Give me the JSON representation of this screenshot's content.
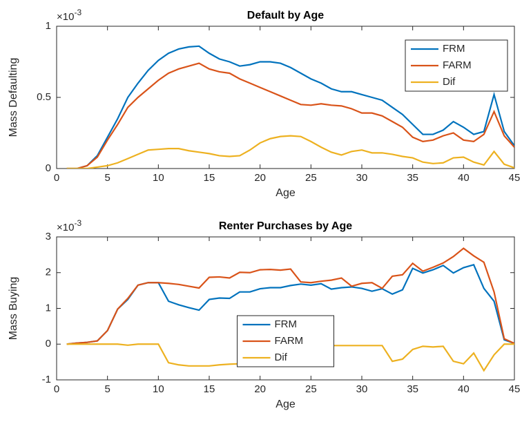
{
  "chart_data": [
    {
      "type": "line",
      "title": "Default by Age",
      "xlabel": "Age",
      "ylabel": "Mass Defaulting",
      "y_exponent": {
        "base": "×10",
        "power": "-3"
      },
      "x": [
        1,
        2,
        3,
        4,
        5,
        6,
        7,
        8,
        9,
        10,
        11,
        12,
        13,
        14,
        15,
        16,
        17,
        18,
        19,
        20,
        21,
        22,
        23,
        24,
        25,
        26,
        27,
        28,
        29,
        30,
        31,
        32,
        33,
        34,
        35,
        36,
        37,
        38,
        39,
        40,
        41,
        42,
        43,
        44,
        45
      ],
      "series": [
        {
          "name": "FRM",
          "color": "#0072BD",
          "values": [
            0,
            0,
            0.02,
            0.09,
            0.22,
            0.35,
            0.5,
            0.6,
            0.69,
            0.76,
            0.81,
            0.84,
            0.855,
            0.86,
            0.81,
            0.77,
            0.75,
            0.72,
            0.73,
            0.75,
            0.75,
            0.74,
            0.71,
            0.67,
            0.63,
            0.6,
            0.56,
            0.54,
            0.54,
            0.52,
            0.5,
            0.48,
            0.43,
            0.38,
            0.31,
            0.24,
            0.24,
            0.27,
            0.33,
            0.29,
            0.24,
            0.26,
            0.52,
            0.26,
            0.16
          ]
        },
        {
          "name": "FARM",
          "color": "#D95319",
          "values": [
            0,
            0,
            0.02,
            0.08,
            0.2,
            0.31,
            0.43,
            0.5,
            0.56,
            0.62,
            0.67,
            0.7,
            0.72,
            0.74,
            0.7,
            0.68,
            0.67,
            0.63,
            0.6,
            0.57,
            0.54,
            0.51,
            0.48,
            0.45,
            0.445,
            0.455,
            0.445,
            0.44,
            0.42,
            0.39,
            0.39,
            0.37,
            0.33,
            0.29,
            0.22,
            0.19,
            0.2,
            0.23,
            0.25,
            0.2,
            0.19,
            0.24,
            0.4,
            0.23,
            0.15
          ]
        },
        {
          "name": "Dif",
          "color": "#EDB120",
          "values": [
            0,
            0,
            0,
            0.01,
            0.02,
            0.04,
            0.07,
            0.1,
            0.13,
            0.135,
            0.14,
            0.14,
            0.125,
            0.115,
            0.105,
            0.09,
            0.085,
            0.09,
            0.13,
            0.18,
            0.21,
            0.225,
            0.23,
            0.225,
            0.19,
            0.15,
            0.115,
            0.095,
            0.12,
            0.13,
            0.11,
            0.11,
            0.1,
            0.085,
            0.075,
            0.045,
            0.035,
            0.04,
            0.075,
            0.08,
            0.045,
            0.025,
            0.12,
            0.03,
            0.005
          ]
        }
      ],
      "xlim": [
        0,
        45
      ],
      "xticks": [
        0,
        5,
        10,
        15,
        20,
        25,
        30,
        35,
        40,
        45
      ],
      "ylim": [
        0,
        1
      ],
      "yticks": [
        0,
        0.5,
        1
      ],
      "legend": "northeast"
    },
    {
      "type": "line",
      "title": "Renter Purchases by Age",
      "xlabel": "Age",
      "ylabel": "Mass Buying",
      "y_exponent": {
        "base": "×10",
        "power": "-3"
      },
      "x": [
        1,
        2,
        3,
        4,
        5,
        6,
        7,
        8,
        9,
        10,
        11,
        12,
        13,
        14,
        15,
        16,
        17,
        18,
        19,
        20,
        21,
        22,
        23,
        24,
        25,
        26,
        27,
        28,
        29,
        30,
        31,
        32,
        33,
        34,
        35,
        36,
        37,
        38,
        39,
        40,
        41,
        42,
        43,
        44,
        45
      ],
      "series": [
        {
          "name": "FRM",
          "color": "#0072BD",
          "values": [
            0,
            0.03,
            0.05,
            0.09,
            0.38,
            0.98,
            1.25,
            1.65,
            1.72,
            1.72,
            1.2,
            1.1,
            1.02,
            0.95,
            1.25,
            1.29,
            1.28,
            1.46,
            1.46,
            1.55,
            1.58,
            1.58,
            1.64,
            1.68,
            1.65,
            1.69,
            1.54,
            1.58,
            1.6,
            1.56,
            1.48,
            1.55,
            1.4,
            1.52,
            2.12,
            1.99,
            2.08,
            2.2,
            1.99,
            2.14,
            2.22,
            1.56,
            1.2,
            0.12,
            0.02
          ]
        },
        {
          "name": "FARM",
          "color": "#D95319",
          "values": [
            0,
            0.03,
            0.05,
            0.09,
            0.38,
            0.98,
            1.28,
            1.65,
            1.72,
            1.72,
            1.7,
            1.67,
            1.62,
            1.57,
            1.87,
            1.88,
            1.85,
            2.01,
            2.0,
            2.08,
            2.09,
            2.07,
            2.1,
            1.74,
            1.72,
            1.76,
            1.79,
            1.85,
            1.62,
            1.7,
            1.72,
            1.56,
            1.9,
            1.94,
            2.26,
            2.04,
            2.15,
            2.27,
            2.45,
            2.68,
            2.47,
            2.29,
            1.46,
            0.15,
            0.02
          ]
        },
        {
          "name": "Dif",
          "color": "#EDB120",
          "values": [
            0,
            0,
            0,
            0,
            0,
            0,
            -0.03,
            0,
            0,
            0,
            -0.52,
            -0.58,
            -0.61,
            -0.61,
            -0.61,
            -0.58,
            -0.56,
            -0.55,
            -0.54,
            -0.53,
            -0.52,
            -0.49,
            -0.46,
            -0.04,
            -0.04,
            -0.04,
            -0.04,
            -0.04,
            -0.04,
            -0.04,
            -0.04,
            -0.04,
            -0.48,
            -0.42,
            -0.15,
            -0.06,
            -0.08,
            -0.06,
            -0.48,
            -0.55,
            -0.25,
            -0.74,
            -0.3,
            0,
            0
          ]
        }
      ],
      "xlim": [
        0,
        45
      ],
      "xticks": [
        0,
        5,
        10,
        15,
        20,
        25,
        30,
        35,
        40,
        45
      ],
      "ylim": [
        -1,
        3
      ],
      "yticks": [
        -1,
        0,
        1,
        2,
        3
      ],
      "legend": "south"
    }
  ]
}
